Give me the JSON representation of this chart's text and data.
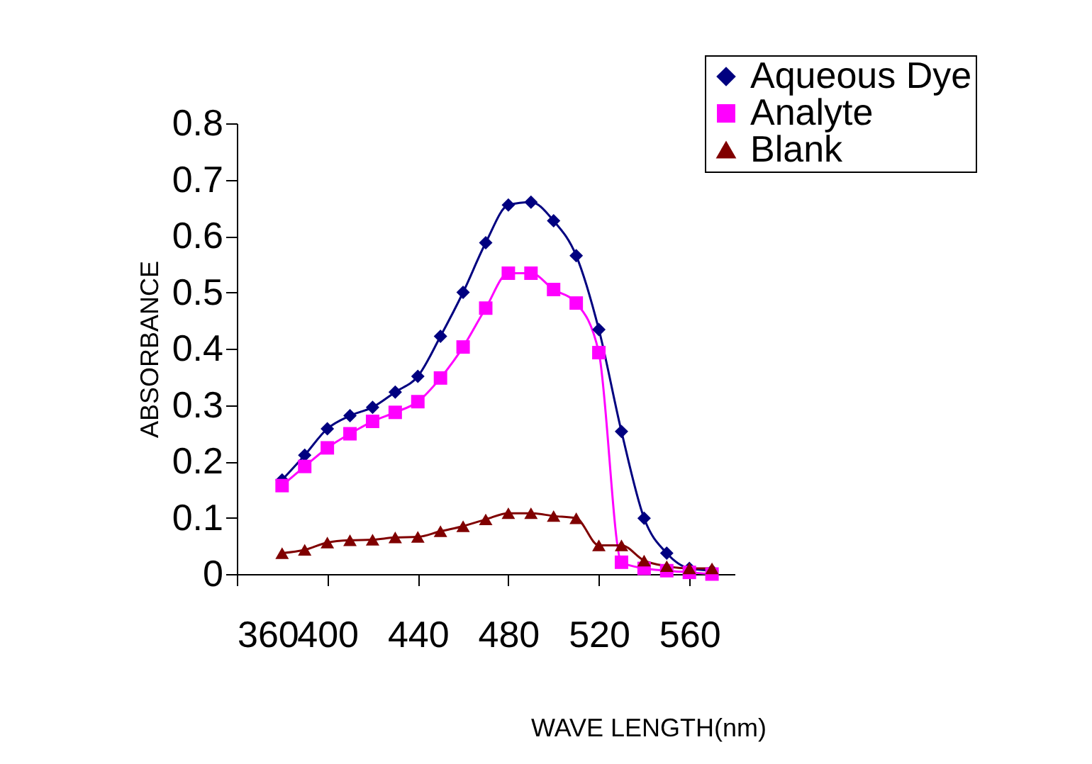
{
  "chart_data": {
    "type": "line",
    "xlabel": "WAVE LENGTH(nm)",
    "ylabel": "ABSORBANCE",
    "x": [
      380,
      390,
      400,
      410,
      420,
      430,
      440,
      450,
      460,
      470,
      480,
      490,
      500,
      510,
      520,
      530,
      540,
      550,
      560,
      570
    ],
    "series": [
      {
        "name": "Aqueous Dye",
        "color": "#000080",
        "marker": "diamond",
        "values": [
          0.167,
          0.211,
          0.258,
          0.281,
          0.296,
          0.323,
          0.351,
          0.422,
          0.5,
          0.588,
          0.655,
          0.66,
          0.627,
          0.565,
          0.434,
          0.253,
          0.099,
          0.037,
          0.01,
          0.006
        ]
      },
      {
        "name": "Analyte",
        "color": "#ff00ff",
        "marker": "square",
        "values": [
          0.157,
          0.191,
          0.224,
          0.249,
          0.271,
          0.287,
          0.306,
          0.348,
          0.403,
          0.472,
          0.534,
          0.534,
          0.505,
          0.481,
          0.393,
          0.021,
          0.01,
          0.006,
          0.003,
          0.0
        ]
      },
      {
        "name": "Blank",
        "color": "#800000",
        "marker": "triangle",
        "values": [
          0.037,
          0.043,
          0.056,
          0.06,
          0.061,
          0.065,
          0.066,
          0.076,
          0.085,
          0.097,
          0.108,
          0.108,
          0.103,
          0.099,
          0.051,
          0.051,
          0.024,
          0.014,
          0.01,
          0.01
        ]
      }
    ],
    "xlim": [
      360,
      580
    ],
    "xticks": [
      360,
      400,
      440,
      480,
      520,
      560
    ],
    "ylim": [
      0,
      0.8
    ],
    "yticks": [
      0,
      0.1,
      0.2,
      0.3,
      0.4,
      0.5,
      0.6,
      0.7,
      0.8
    ],
    "grid": false,
    "legend": "top right",
    "line_style": "solid"
  }
}
